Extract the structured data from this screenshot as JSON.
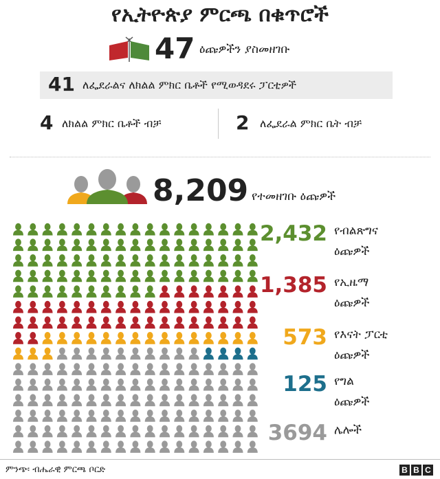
{
  "title": "የኢትዮጵያ ምርጫ በቁጥሮች",
  "parties": {
    "total": "47",
    "total_label": "ዕጩዎችን ያስመዘገቡ",
    "both_count": "41",
    "both_label": "ለፌደራልና ለክልል ምክር ቤቶች የሚወዳደሩ ፓርቲዎች",
    "regional_count": "4",
    "regional_label": "ለክልል ምክር ቤቶች ብቻ",
    "federal_count": "2",
    "federal_label": "ለፌደራል ምክር ቤት ብቻ"
  },
  "candidates": {
    "total": "8,209",
    "total_label": "የተመዘገቡ ዕጩዎች"
  },
  "colors": {
    "prosperity": "#5c8f2f",
    "ezema": "#b3232b",
    "mother": "#f0a81c",
    "private": "#1d6f8c",
    "others": "#9a9a9a",
    "flag_red": "#c0282d",
    "flag_green": "#4e8a3a"
  },
  "chart_data": {
    "type": "pictogram",
    "categories": [
      "prosperity",
      "ezema",
      "mother",
      "private",
      "others"
    ],
    "series": [
      {
        "name": "የብልጽግና ዕጩዎች",
        "value": 2432
      },
      {
        "name": "የኢዜማ ዕጩዎች",
        "value": 1385
      },
      {
        "name": "የእናት ፓርቲ ዕጩዎች",
        "value": 573
      },
      {
        "name": "የግል ዕጩዎች",
        "value": 125
      },
      {
        "name": "ሌሎች",
        "value": 3694
      }
    ],
    "icon_counts": [
      78,
      43,
      18,
      4,
      117
    ]
  },
  "legend": [
    {
      "value": "2,432",
      "line1": "የብልጽግና",
      "line2": "ዕጩዎች",
      "color": "#5c8f2f"
    },
    {
      "value": "1,385",
      "line1": "የኢዜማ",
      "line2": "ዕጩዎች",
      "color": "#b3232b"
    },
    {
      "value": "573",
      "line1": "የእናት ፓርቲ",
      "line2": "ዕጩዎች",
      "color": "#f0a81c"
    },
    {
      "value": "125",
      "line1": "የግል",
      "line2": "ዕጩዎች",
      "color": "#1d6f8c"
    },
    {
      "value": "3694",
      "line1": "ሌሎች",
      "line2": "",
      "color": "#9a9a9a"
    }
  ],
  "footer": {
    "source": "ምንጭ፡ ብሔራዊ ምርጫ ቦርድ",
    "brand": [
      "B",
      "B",
      "C"
    ]
  }
}
